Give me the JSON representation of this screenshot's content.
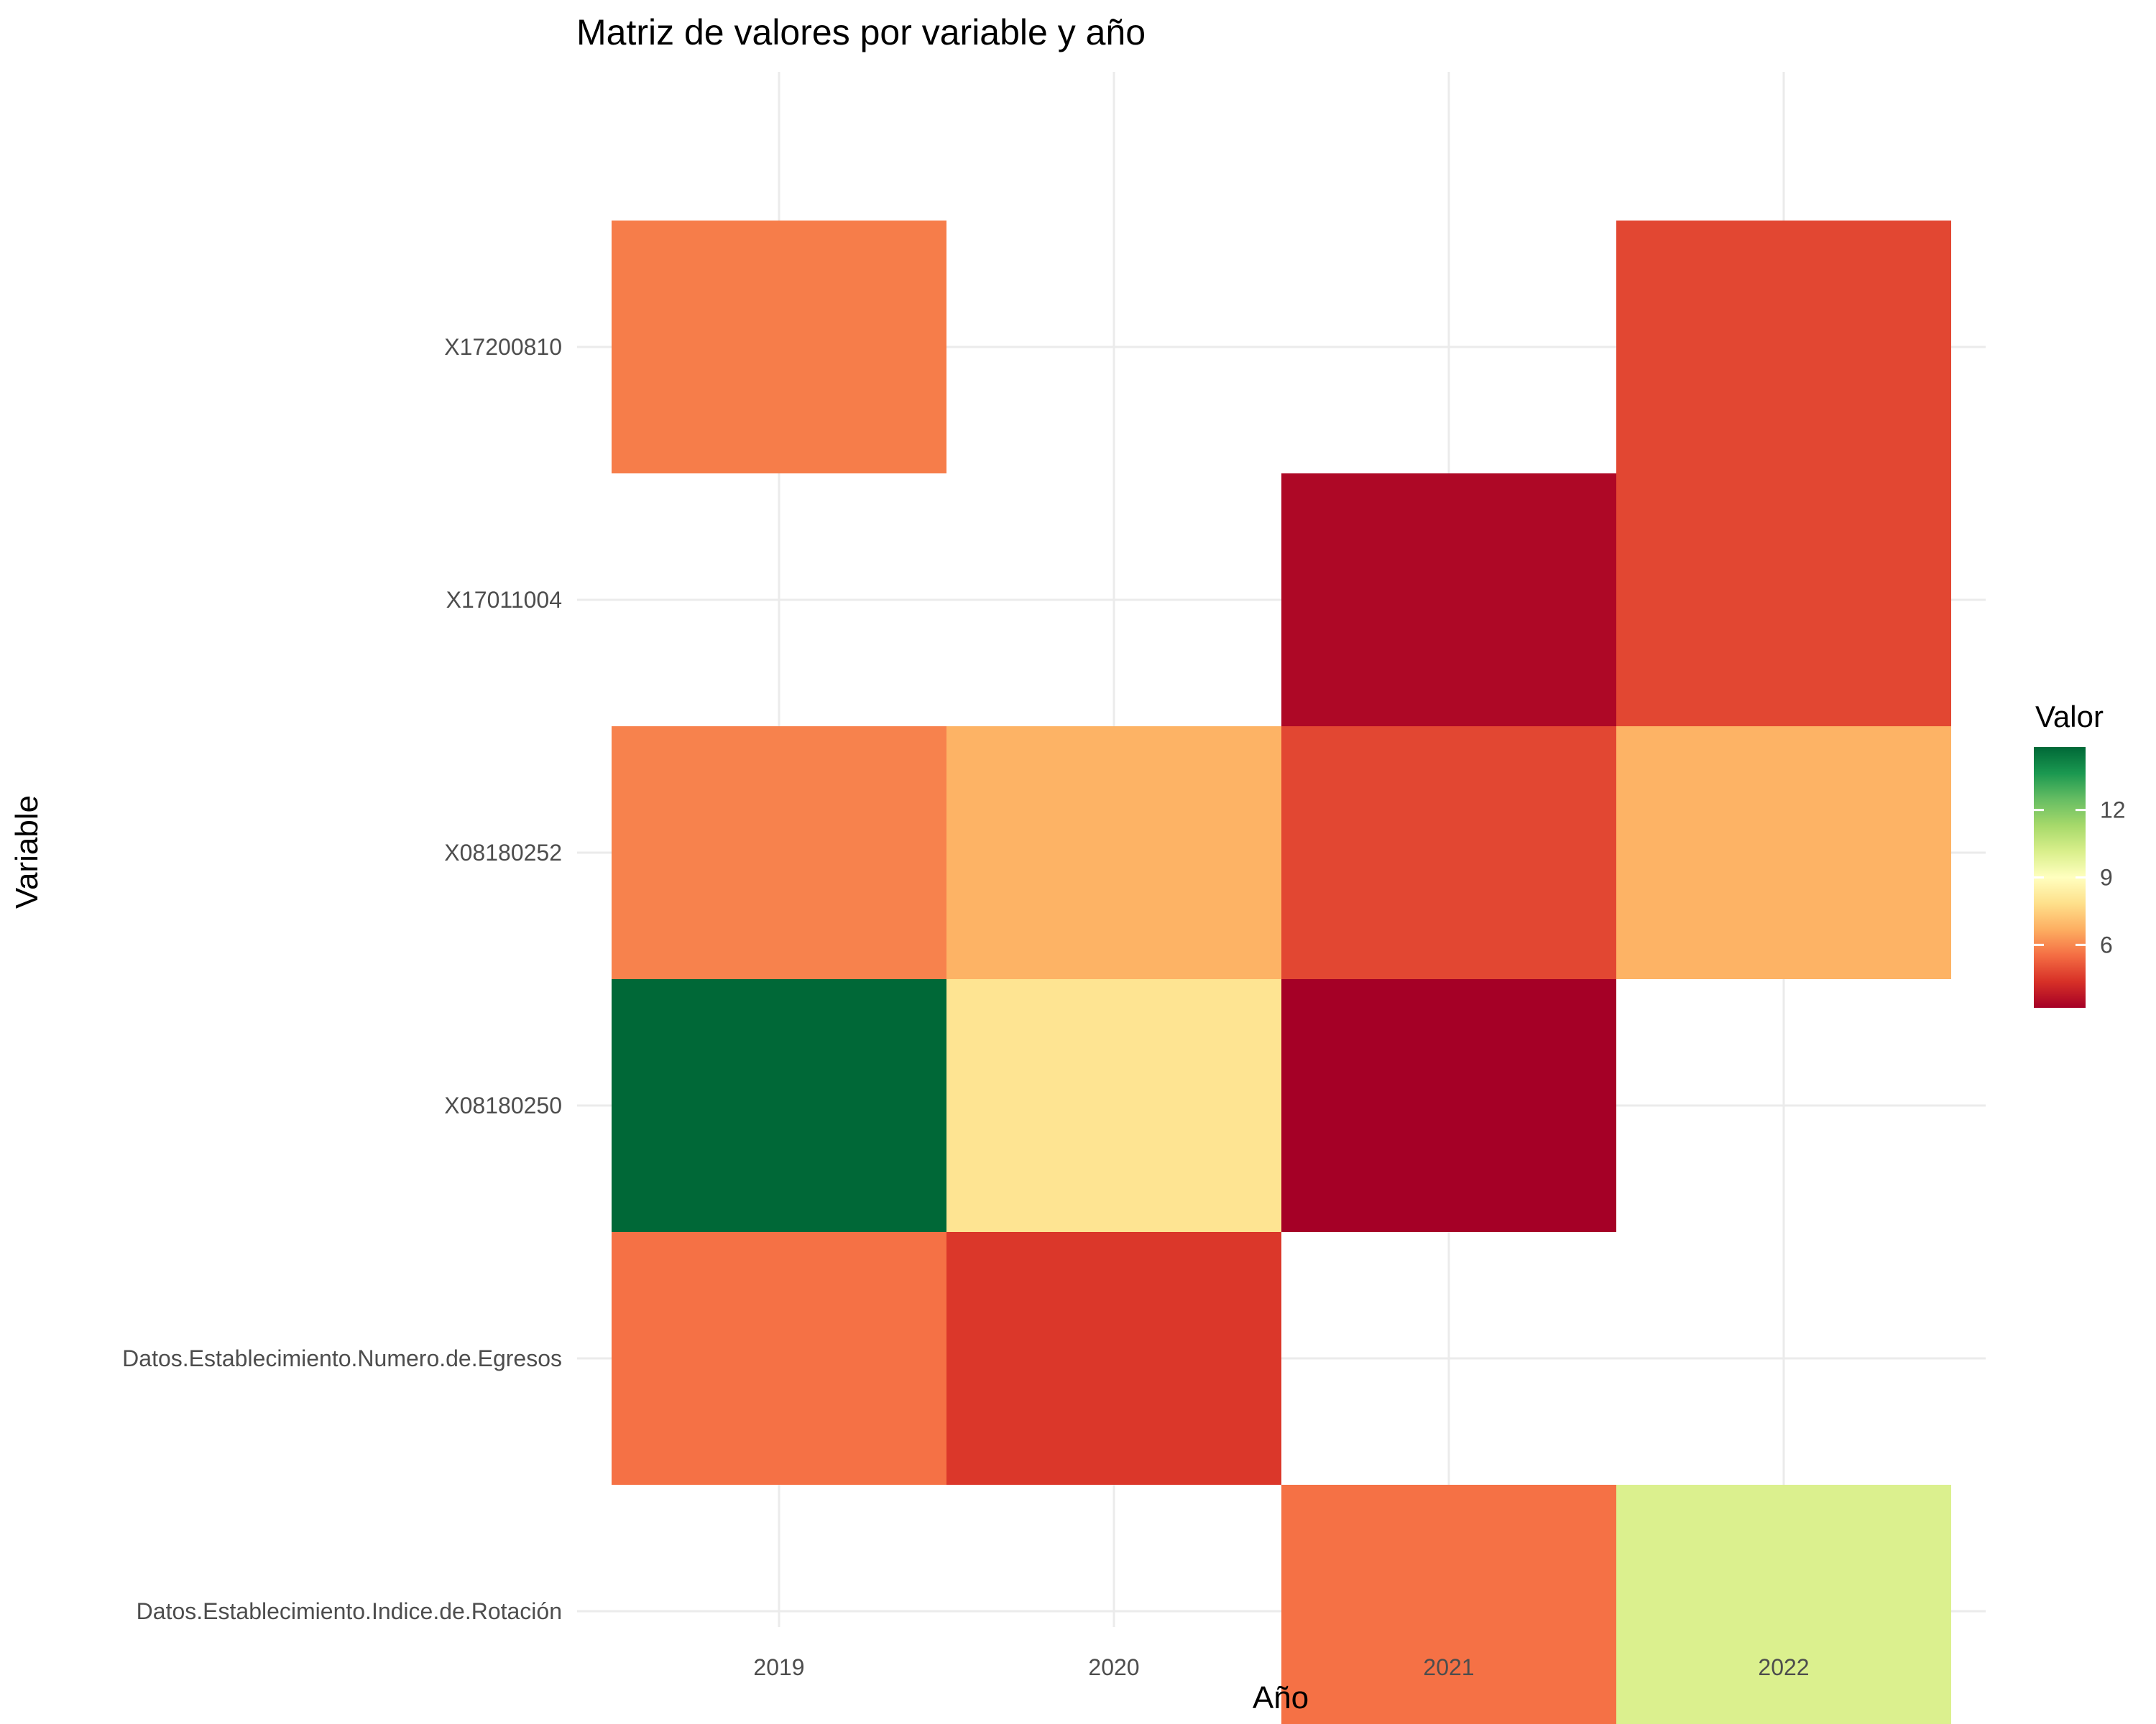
{
  "chart_data": {
    "type": "heatmap",
    "title": "Matriz de valores por variable y año",
    "xlabel": "Año",
    "ylabel": "Variable",
    "x": [
      "2019",
      "2020",
      "2021",
      "2022"
    ],
    "y": [
      "Datos.Establecimiento.Indice.de.Rotación",
      "Datos.Establecimiento.Numero.de.Egresos",
      "X08180250",
      "X08180252",
      "X17011004",
      "X17200810"
    ],
    "cells": [
      {
        "x": "2019",
        "y": "X17200810",
        "value": 5.8
      },
      {
        "x": "2022",
        "y": "X17200810",
        "value": 4.8
      },
      {
        "x": "2021",
        "y": "X17011004",
        "value": 3.4
      },
      {
        "x": "2022",
        "y": "X17011004",
        "value": 4.8
      },
      {
        "x": "2019",
        "y": "X08180252",
        "value": 5.9
      },
      {
        "x": "2020",
        "y": "X08180252",
        "value": 6.8
      },
      {
        "x": "2021",
        "y": "X08180252",
        "value": 4.8
      },
      {
        "x": "2022",
        "y": "X08180252",
        "value": 6.8
      },
      {
        "x": "2019",
        "y": "X08180250",
        "value": 14.8
      },
      {
        "x": "2020",
        "y": "X08180250",
        "value": 8.0
      },
      {
        "x": "2021",
        "y": "X08180250",
        "value": 3.2
      },
      {
        "x": "2019",
        "y": "Datos.Establecimiento.Numero.de.Egresos",
        "value": 5.6
      },
      {
        "x": "2020",
        "y": "Datos.Establecimiento.Numero.de.Egresos",
        "value": 4.5
      },
      {
        "x": "2021",
        "y": "Datos.Establecimiento.Indice.de.Rotación",
        "value": 5.6
      },
      {
        "x": "2022",
        "y": "Datos.Establecimiento.Indice.de.Rotación",
        "value": 10.1
      }
    ],
    "legend": {
      "title": "Valor",
      "position": "right",
      "breaks": [
        6,
        9,
        12
      ],
      "range": [
        3.2,
        14.8
      ],
      "colors": [
        "#a50026",
        "#d73027",
        "#f46d43",
        "#fdae61",
        "#fee08b",
        "#ffffbf",
        "#d9ef8b",
        "#a6d96a",
        "#66bd63",
        "#1a9850",
        "#006837"
      ]
    },
    "grid": true
  }
}
